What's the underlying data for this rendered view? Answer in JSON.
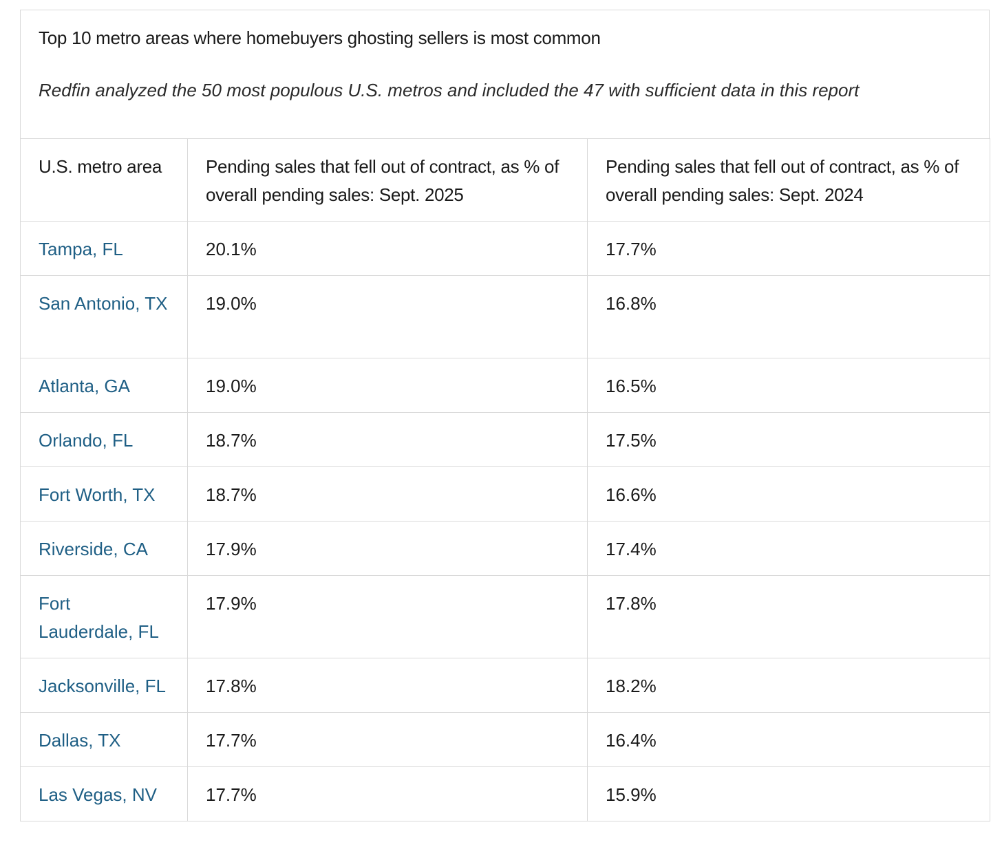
{
  "title": "Top 10 metro areas where homebuyers ghosting sellers is most common",
  "subtitle": "Redfin analyzed the 50 most populous U.S. metros and included the 47 with sufficient data in this report",
  "headers": [
    "U.S. metro area",
    "Pending sales that fell out of contract, as % of overall pending sales: Sept. 2025",
    "Pending sales that fell out of contract, as % of overall pending sales:  Sept. 2024"
  ],
  "rows": [
    {
      "metro": "Tampa, FL",
      "sep2025": "20.1%",
      "sep2024": "17.7%"
    },
    {
      "metro": "San Antonio, TX",
      "sep2025": "19.0%",
      "sep2024": "16.8%"
    },
    {
      "metro": "Atlanta, GA",
      "sep2025": "19.0%",
      "sep2024": "16.5%"
    },
    {
      "metro": "Orlando, FL",
      "sep2025": "18.7%",
      "sep2024": "17.5%"
    },
    {
      "metro": "Fort Worth, TX",
      "sep2025": "18.7%",
      "sep2024": "16.6%"
    },
    {
      "metro": "Riverside, CA",
      "sep2025": "17.9%",
      "sep2024": "17.4%"
    },
    {
      "metro": "Fort Lauderdale, FL",
      "sep2025": "17.9%",
      "sep2024": "17.8%"
    },
    {
      "metro": "Jacksonville, FL",
      "sep2025": "17.8%",
      "sep2024": "18.2%"
    },
    {
      "metro": "Dallas, TX",
      "sep2025": "17.7%",
      "sep2024": "16.4%"
    },
    {
      "metro": "Las Vegas, NV",
      "sep2025": "17.7%",
      "sep2024": "15.9%"
    }
  ],
  "colors": {
    "link": "#1f5f85",
    "text": "#1a1a1a",
    "border": "#d9d9d9"
  }
}
